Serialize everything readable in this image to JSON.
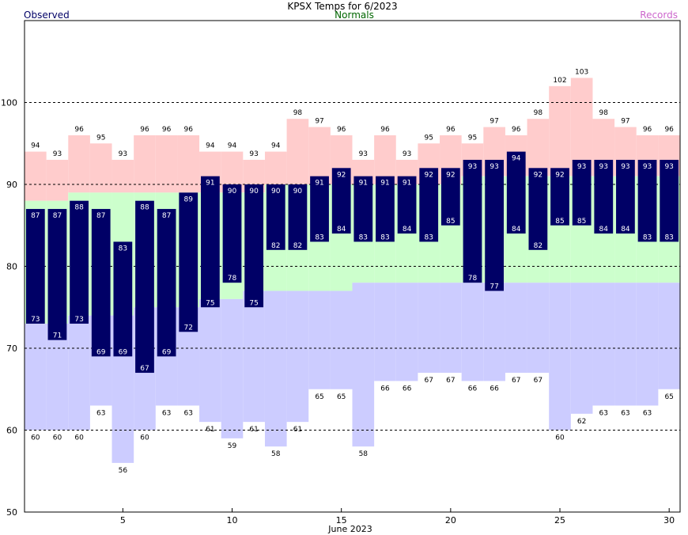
{
  "chart_data": {
    "type": "bar",
    "title": "KPSX Temps for 6/2023",
    "xlabel": "June 2023",
    "legend": [
      {
        "key": "observed",
        "label": "Observed",
        "color": "#000066"
      },
      {
        "key": "normals",
        "label": "Normals",
        "color": "#006600"
      },
      {
        "key": "records",
        "label": "Records",
        "color": "#cc66cc"
      }
    ],
    "colors": {
      "observed_bar": "#000066",
      "normal_band": "#ccffcc",
      "record_high_band": "#ffcccc",
      "record_low_band": "#ccccff",
      "grid": "#000000"
    },
    "ylim": [
      50,
      110
    ],
    "xlim": [
      0.5,
      30.5
    ],
    "y_ticks": [
      50,
      60,
      70,
      80,
      90,
      100
    ],
    "x_ticks": [
      5,
      10,
      15,
      20,
      25,
      30
    ],
    "grid_lines_y": [
      60,
      70,
      80,
      90,
      100
    ],
    "days": [
      1,
      2,
      3,
      4,
      5,
      6,
      7,
      8,
      9,
      10,
      11,
      12,
      13,
      14,
      15,
      16,
      17,
      18,
      19,
      20,
      21,
      22,
      23,
      24,
      25,
      26,
      27,
      28,
      29,
      30
    ],
    "observed_high": [
      87,
      87,
      88,
      87,
      83,
      88,
      87,
      89,
      91,
      90,
      90,
      90,
      90,
      91,
      92,
      91,
      91,
      91,
      92,
      92,
      93,
      93,
      94,
      92,
      92,
      93,
      93,
      93,
      93,
      93
    ],
    "observed_low": [
      73,
      71,
      73,
      69,
      69,
      67,
      69,
      72,
      75,
      78,
      75,
      82,
      82,
      83,
      84,
      83,
      83,
      84,
      83,
      85,
      78,
      77,
      84,
      82,
      85,
      85,
      84,
      84,
      83,
      83
    ],
    "normal_high": [
      88,
      88,
      89,
      89,
      89,
      89,
      89,
      89,
      89,
      89,
      89,
      90,
      90,
      90,
      90,
      90,
      90,
      90,
      90,
      90,
      91,
      91,
      91,
      91,
      91,
      91,
      91,
      91,
      91,
      91
    ],
    "normal_low": [
      73,
      73,
      74,
      74,
      74,
      75,
      75,
      75,
      76,
      76,
      77,
      77,
      77,
      77,
      77,
      78,
      78,
      78,
      78,
      78,
      78,
      78,
      78,
      78,
      78,
      78,
      78,
      78,
      78,
      78
    ],
    "record_high": [
      94,
      93,
      96,
      95,
      93,
      96,
      96,
      96,
      94,
      94,
      93,
      94,
      98,
      97,
      96,
      93,
      96,
      93,
      95,
      96,
      95,
      97,
      96,
      98,
      102,
      103,
      98,
      97,
      96,
      96
    ],
    "record_low": [
      60,
      60,
      60,
      63,
      56,
      60,
      63,
      63,
      61,
      59,
      61,
      58,
      61,
      65,
      65,
      58,
      66,
      66,
      67,
      67,
      66,
      66,
      67,
      67,
      60,
      62,
      63,
      63,
      63,
      65
    ]
  }
}
